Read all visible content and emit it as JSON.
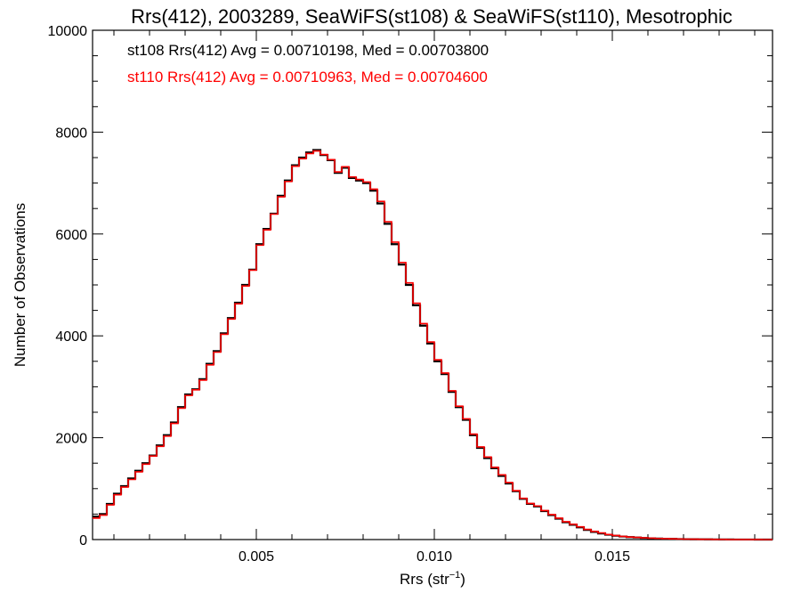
{
  "chart_data": {
    "type": "line",
    "title": "Rrs(412), 2003289, SeaWiFS(st108) & SeaWiFS(st110), Mesotrophic",
    "xlabel_base": "Rrs (str",
    "xlabel_sup": "−1",
    "xlabel_close": ")",
    "ylabel": "Number of Observations",
    "xlim": [
      0.0004,
      0.0195
    ],
    "ylim": [
      0,
      10000
    ],
    "x_ticks": [
      0.005,
      0.01,
      0.015
    ],
    "x_tick_labels": [
      "0.005",
      "0.010",
      "0.015"
    ],
    "y_ticks": [
      0,
      2000,
      4000,
      6000,
      8000,
      10000
    ],
    "y_tick_labels": [
      "0",
      "2000",
      "4000",
      "6000",
      "8000",
      "10000"
    ],
    "grid": false,
    "histogram_step": true,
    "annotations": [
      {
        "text": "st108 Rrs(412) Avg = 0.00710198, Med = 0.00703800",
        "color": "#000000"
      },
      {
        "text": "st110 Rrs(412) Avg = 0.00710963, Med = 0.00704600",
        "color": "#ff0000"
      }
    ],
    "series": [
      {
        "color": "#000000",
        "x": [
          0.0004,
          0.0006,
          0.0008,
          0.001,
          0.0012,
          0.0014,
          0.0016,
          0.0018,
          0.002,
          0.0022,
          0.0024,
          0.0026,
          0.0028,
          0.003,
          0.0032,
          0.0034,
          0.0036,
          0.0038,
          0.004,
          0.0042,
          0.0044,
          0.0046,
          0.0048,
          0.005,
          0.0052,
          0.0054,
          0.0056,
          0.0058,
          0.006,
          0.0062,
          0.0064,
          0.0066,
          0.0068,
          0.007,
          0.0072,
          0.0074,
          0.0076,
          0.0078,
          0.008,
          0.0082,
          0.0084,
          0.0086,
          0.0088,
          0.009,
          0.0092,
          0.0094,
          0.0096,
          0.0098,
          0.01,
          0.0102,
          0.0104,
          0.0106,
          0.0108,
          0.011,
          0.0112,
          0.0114,
          0.0116,
          0.0118,
          0.012,
          0.0122,
          0.0124,
          0.0126,
          0.0128,
          0.013,
          0.0132,
          0.0134,
          0.0136,
          0.0138,
          0.014,
          0.0142,
          0.0144,
          0.0146,
          0.0148,
          0.015,
          0.0152,
          0.0154,
          0.0156,
          0.0158,
          0.016,
          0.0162,
          0.0164,
          0.0166,
          0.0168,
          0.017,
          0.0172,
          0.0174,
          0.0176,
          0.0178,
          0.018,
          0.0182,
          0.0184,
          0.0186,
          0.0188,
          0.019,
          0.0192,
          0.0194
        ],
        "y": [
          450,
          500,
          700,
          900,
          1050,
          1200,
          1350,
          1500,
          1650,
          1850,
          2050,
          2300,
          2600,
          2850,
          2950,
          3150,
          3450,
          3700,
          4050,
          4350,
          4650,
          5000,
          5300,
          5800,
          6100,
          6400,
          6750,
          7050,
          7350,
          7500,
          7600,
          7650,
          7550,
          7450,
          7200,
          7300,
          7100,
          7050,
          7000,
          6850,
          6600,
          6200,
          5800,
          5400,
          5000,
          4600,
          4200,
          3850,
          3500,
          3250,
          2900,
          2600,
          2350,
          2050,
          1800,
          1600,
          1400,
          1250,
          1100,
          950,
          800,
          700,
          650,
          560,
          480,
          410,
          340,
          290,
          240,
          190,
          150,
          120,
          95,
          75,
          60,
          48,
          40,
          32,
          25,
          20,
          16,
          13,
          10,
          8,
          6,
          5,
          4,
          3,
          2,
          2,
          1,
          1,
          1,
          0,
          0,
          0
        ]
      },
      {
        "color": "#ff0000",
        "x": [
          0.0004,
          0.0006,
          0.0008,
          0.001,
          0.0012,
          0.0014,
          0.0016,
          0.0018,
          0.002,
          0.0022,
          0.0024,
          0.0026,
          0.0028,
          0.003,
          0.0032,
          0.0034,
          0.0036,
          0.0038,
          0.004,
          0.0042,
          0.0044,
          0.0046,
          0.0048,
          0.005,
          0.0052,
          0.0054,
          0.0056,
          0.0058,
          0.006,
          0.0062,
          0.0064,
          0.0066,
          0.0068,
          0.007,
          0.0072,
          0.0074,
          0.0076,
          0.0078,
          0.008,
          0.0082,
          0.0084,
          0.0086,
          0.0088,
          0.009,
          0.0092,
          0.0094,
          0.0096,
          0.0098,
          0.01,
          0.0102,
          0.0104,
          0.0106,
          0.0108,
          0.011,
          0.0112,
          0.0114,
          0.0116,
          0.0118,
          0.012,
          0.0122,
          0.0124,
          0.0126,
          0.0128,
          0.013,
          0.0132,
          0.0134,
          0.0136,
          0.0138,
          0.014,
          0.0142,
          0.0144,
          0.0146,
          0.0148,
          0.015,
          0.0152,
          0.0154,
          0.0156,
          0.0158,
          0.016,
          0.0162,
          0.0164,
          0.0166,
          0.0168,
          0.017,
          0.0172,
          0.0174,
          0.0176,
          0.0178,
          0.018,
          0.0182,
          0.0184,
          0.0186,
          0.0188,
          0.019,
          0.0192,
          0.0194
        ],
        "y": [
          420,
          480,
          680,
          880,
          1030,
          1180,
          1330,
          1480,
          1640,
          1830,
          2030,
          2280,
          2580,
          2830,
          2940,
          3130,
          3430,
          3680,
          4030,
          4330,
          4630,
          4980,
          5290,
          5780,
          6080,
          6390,
          6730,
          7030,
          7330,
          7480,
          7580,
          7630,
          7560,
          7460,
          7220,
          7320,
          7120,
          7070,
          7020,
          6880,
          6640,
          6240,
          5840,
          5440,
          5040,
          4640,
          4240,
          3880,
          3530,
          3270,
          2920,
          2620,
          2370,
          2070,
          1820,
          1620,
          1420,
          1270,
          1120,
          960,
          810,
          710,
          660,
          570,
          490,
          420,
          350,
          300,
          250,
          200,
          160,
          130,
          100,
          80,
          63,
          50,
          42,
          34,
          27,
          22,
          18,
          14,
          11,
          9,
          7,
          6,
          5,
          4,
          3,
          2,
          2,
          1,
          1,
          1,
          0,
          0
        ]
      }
    ]
  }
}
